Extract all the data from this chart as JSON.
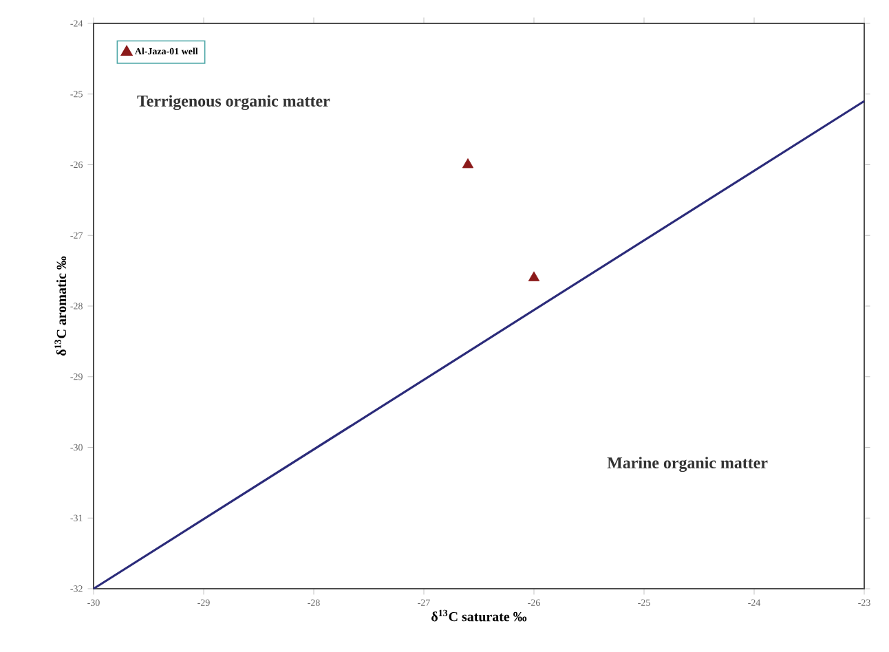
{
  "chart_data": {
    "type": "scatter",
    "xlabel": "δ$^{13}$C saturate ‰",
    "ylabel": "δ$^{13}$C aromatic ‰",
    "xlim": [
      -30,
      -23
    ],
    "ylim": [
      -32,
      -24
    ],
    "xticks": [
      -30,
      -29,
      -28,
      -27,
      -26,
      -25,
      -24,
      -23
    ],
    "yticks": [
      -32,
      -31,
      -30,
      -29,
      -28,
      -27,
      -26,
      -25,
      -24
    ],
    "legend": "top left",
    "grid": false,
    "annotations": [
      "Terrigenous organic matter",
      "Marine organic matter"
    ],
    "series": [
      {
        "name": "Al-Jaza-01 well",
        "marker": "triangle",
        "color": "#8b1a1a",
        "x": [
          -26.6,
          -26.0
        ],
        "values": [
          -26.0,
          -27.6
        ]
      },
      {
        "type": "line",
        "marker": "none",
        "color": "#2b2b7a",
        "x": [
          -30,
          -23
        ],
        "values": [
          -32,
          -25.1
        ]
      }
    ]
  }
}
